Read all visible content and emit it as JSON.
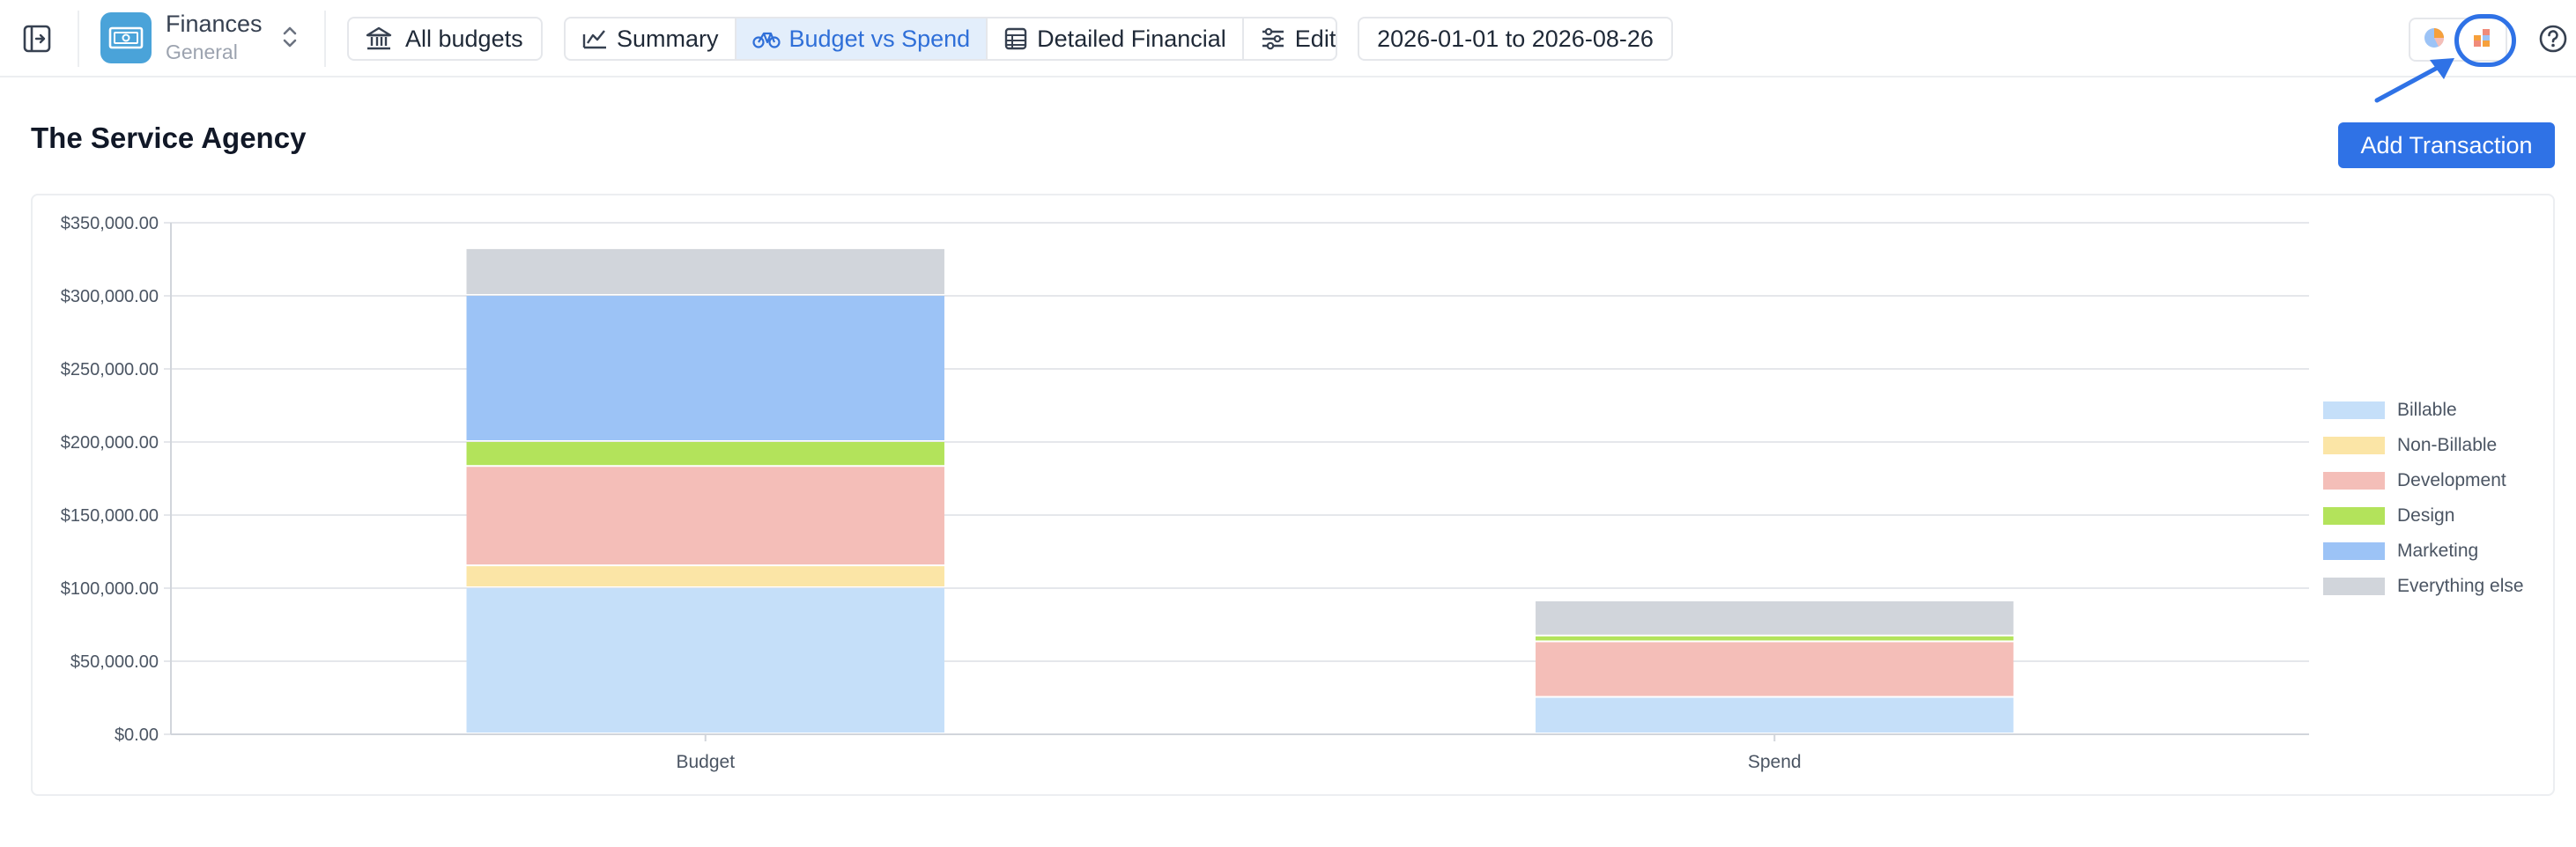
{
  "app": {
    "name": "Finances",
    "subtitle": "General"
  },
  "toolbar": {
    "all_budgets_label": "All budgets",
    "tabs": [
      {
        "label": "Summary",
        "icon": "line-chart-icon",
        "active": false
      },
      {
        "label": "Budget vs Spend",
        "icon": "bicycle-icon",
        "active": true
      },
      {
        "label": "Detailed Financial",
        "icon": "table-icon",
        "active": false
      },
      {
        "label": "Edit",
        "icon": "sliders-icon",
        "active": false
      }
    ],
    "date_range": "2026-01-01 to 2026-08-26"
  },
  "page": {
    "title": "The Service Agency",
    "add_transaction_label": "Add Transaction"
  },
  "colors": {
    "accent": "#2f72e6",
    "Billable": "#c5dff9",
    "Non-Billable": "#fbe5a6",
    "Development": "#f4beb8",
    "Design": "#b3e35b",
    "Marketing": "#9cc3f6",
    "Everything else": "#d1d5db"
  },
  "chart_data": {
    "type": "bar",
    "stacked": true,
    "categories": [
      "Budget",
      "Spend"
    ],
    "series": [
      {
        "name": "Billable",
        "values": [
          100000,
          25000
        ]
      },
      {
        "name": "Non-Billable",
        "values": [
          15000,
          0
        ]
      },
      {
        "name": "Development",
        "values": [
          68000,
          38000
        ]
      },
      {
        "name": "Design",
        "values": [
          17000,
          4000
        ]
      },
      {
        "name": "Marketing",
        "values": [
          100000,
          0
        ]
      },
      {
        "name": "Everything else",
        "values": [
          32000,
          24000
        ]
      }
    ],
    "ylim": [
      0,
      350000
    ],
    "yticks": [
      0,
      50000,
      100000,
      150000,
      200000,
      250000,
      300000,
      350000
    ],
    "ytick_labels": [
      "$0.00",
      "$50,000.00",
      "$100,000.00",
      "$150,000.00",
      "$200,000.00",
      "$250,000.00",
      "$300,000.00",
      "$350,000.00"
    ],
    "grid": true,
    "legend_position": "right"
  }
}
